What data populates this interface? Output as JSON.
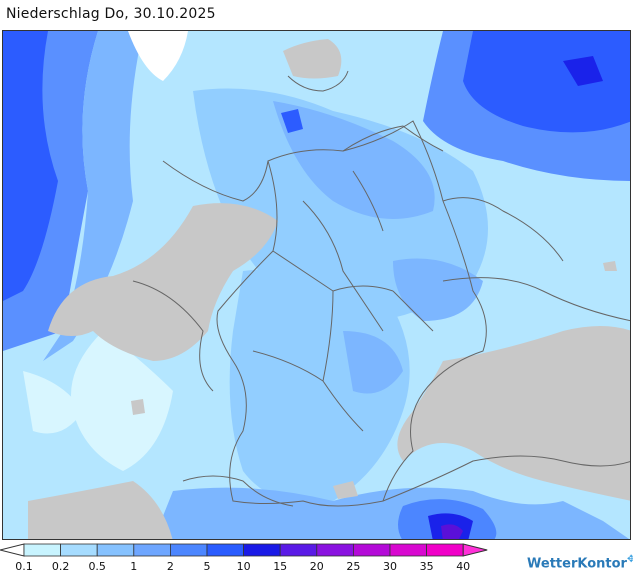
{
  "title": "Niederschlag Do, 30.10.2025",
  "legend": {
    "labels": [
      "0.1",
      "0.2",
      "0.5",
      "1",
      "2",
      "5",
      "10",
      "15",
      "20",
      "25",
      "30",
      "35",
      "40"
    ],
    "colors": [
      "#ffffff",
      "#c8f4ff",
      "#a6dcff",
      "#86c2ff",
      "#6ea6ff",
      "#4c86ff",
      "#2a5cff",
      "#1a1ae6",
      "#5a1ae6",
      "#8a12e0",
      "#b40ad8",
      "#d808d0",
      "#f000c8",
      "#ff30d8"
    ]
  },
  "brand": "WetterKontor",
  "brand_icon": "wetterkontor-logo-icon",
  "map_colors": {
    "sea_light": "#d8f6ff",
    "light": "#b4e6ff",
    "mid": "#92ceff",
    "mid2": "#7cb6ff",
    "strong": "#5a90ff",
    "deep": "#2c5cff",
    "very_deep": "#1a22ea",
    "purple": "#5a10d8",
    "land_no_data": "#c8c8c8",
    "border": "#666666"
  }
}
